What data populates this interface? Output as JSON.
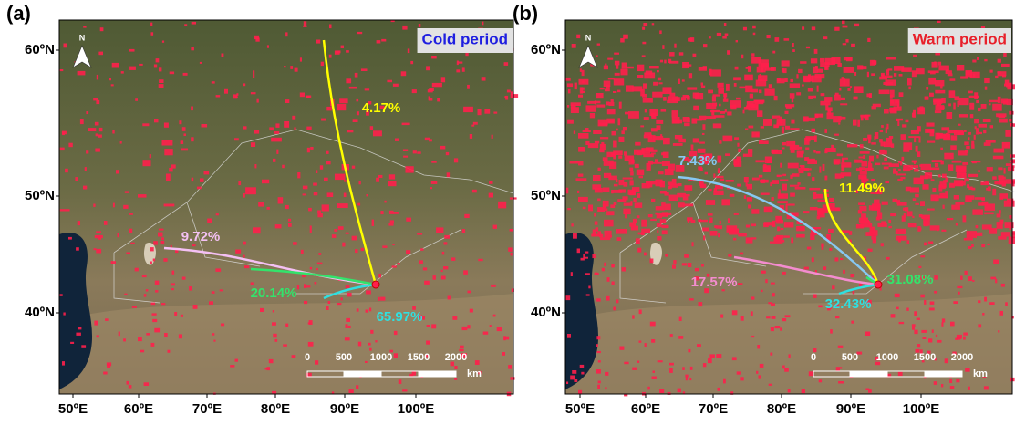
{
  "figure": {
    "panels": [
      {
        "label": "(a)",
        "title": "Cold period",
        "title_color": "#1f1fe0",
        "lat_labels": [
          "60ºN",
          "50ºN",
          "40ºN"
        ],
        "lon_labels": [
          "50ºE",
          "60ºE",
          "70ºE",
          "80ºE",
          "90ºE",
          "100ºE"
        ],
        "north": "N",
        "scale_labels": [
          "0",
          "500",
          "1000",
          "1500",
          "2000"
        ],
        "scale_unit": "km",
        "trajectories": [
          {
            "label": "4.17%",
            "color": "#ffff00"
          },
          {
            "label": "9.72%",
            "color": "#f4c0f4"
          },
          {
            "label": "20.14%",
            "color": "#33e36b"
          },
          {
            "label": "65.97%",
            "color": "#2fe0e0"
          }
        ]
      },
      {
        "label": "(b)",
        "title": "Warm period",
        "title_color": "#e8202a",
        "lat_labels": [
          "60ºN",
          "50ºN",
          "40ºN"
        ],
        "lon_labels": [
          "50ºE",
          "60ºE",
          "70ºE",
          "80ºE",
          "90ºE",
          "100ºE"
        ],
        "north": "N",
        "scale_labels": [
          "0",
          "500",
          "1000",
          "1500",
          "2000"
        ],
        "scale_unit": "km",
        "trajectories": [
          {
            "label": "7.43%",
            "color": "#86c8f2"
          },
          {
            "label": "11.49%",
            "color": "#ffff00"
          },
          {
            "label": "17.57%",
            "color": "#f48ccf"
          },
          {
            "label": "31.08%",
            "color": "#33e36b"
          },
          {
            "label": "32.43%",
            "color": "#2fe0e0"
          }
        ]
      }
    ]
  }
}
